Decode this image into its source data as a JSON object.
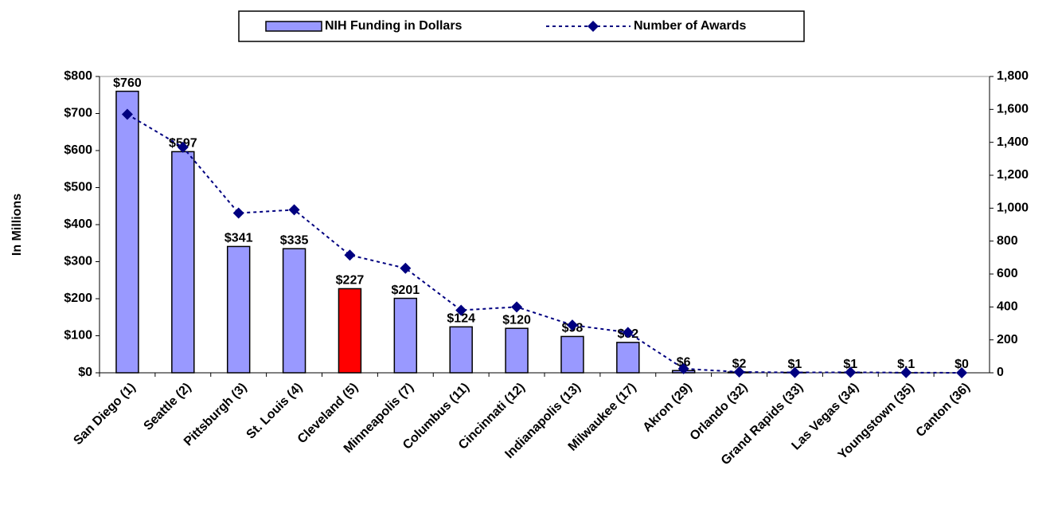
{
  "chart_data": {
    "type": "bar",
    "y_label": "In Millions",
    "categories": [
      "San Diego (1)",
      "Seattle (2)",
      "Pittsburgh (3)",
      "St. Louis (4)",
      "Cleveland (5)",
      "Minneapolis (7)",
      "Columbus (11)",
      "Cincinnati (12)",
      "Indianapolis (13)",
      "Milwaukee (17)",
      "Akron (29)",
      "Orlando (32)",
      "Grand Rapids (33)",
      "Las Vegas (34)",
      "Youngstown (35)",
      "Canton (36)"
    ],
    "series": [
      {
        "name": "NIH Funding in Dollars",
        "type": "bar",
        "color": "#9999ff",
        "colors": [
          "#9999ff",
          "#9999ff",
          "#9999ff",
          "#9999ff",
          "#ff0000",
          "#9999ff",
          "#9999ff",
          "#9999ff",
          "#9999ff",
          "#9999ff",
          "#9999ff",
          "#9999ff",
          "#9999ff",
          "#9999ff",
          "#9999ff",
          "#9999ff"
        ],
        "values": [
          760,
          597,
          341,
          335,
          227,
          201,
          124,
          120,
          98,
          82,
          6,
          2,
          1,
          1,
          0.1,
          0
        ],
        "value_labels": [
          "$760",
          "$597",
          "$341",
          "$335",
          "$227",
          "$201",
          "$124",
          "$120",
          "$98",
          "$82",
          "$6",
          "$2",
          "$1",
          "$1",
          "$.1",
          "$0"
        ]
      },
      {
        "name": "Number of Awards",
        "type": "line",
        "axis": "y2",
        "color": "#000080",
        "values": [
          1570,
          1370,
          970,
          990,
          715,
          635,
          380,
          400,
          290,
          245,
          25,
          5,
          2,
          3,
          1,
          0
        ]
      }
    ],
    "ylim": [
      0,
      800
    ],
    "yticks": [
      {
        "value": 0,
        "label": "$0"
      },
      {
        "value": 100,
        "label": "$100"
      },
      {
        "value": 200,
        "label": "$200"
      },
      {
        "value": 300,
        "label": "$300"
      },
      {
        "value": 400,
        "label": "$400"
      },
      {
        "value": 500,
        "label": "$500"
      },
      {
        "value": 600,
        "label": "$600"
      },
      {
        "value": 700,
        "label": "$700"
      },
      {
        "value": 800,
        "label": "$800"
      }
    ],
    "y2lim": [
      0,
      1800
    ],
    "y2ticks": [
      0,
      200,
      400,
      600,
      800,
      {
        "value": 1000,
        "label": "1,000"
      },
      {
        "value": 1200,
        "label": "1,200"
      },
      {
        "value": 1400,
        "label": "1,400"
      },
      {
        "value": 1600,
        "label": "1,600"
      },
      {
        "value": 1800,
        "label": "1,800"
      }
    ],
    "legend": "top"
  }
}
